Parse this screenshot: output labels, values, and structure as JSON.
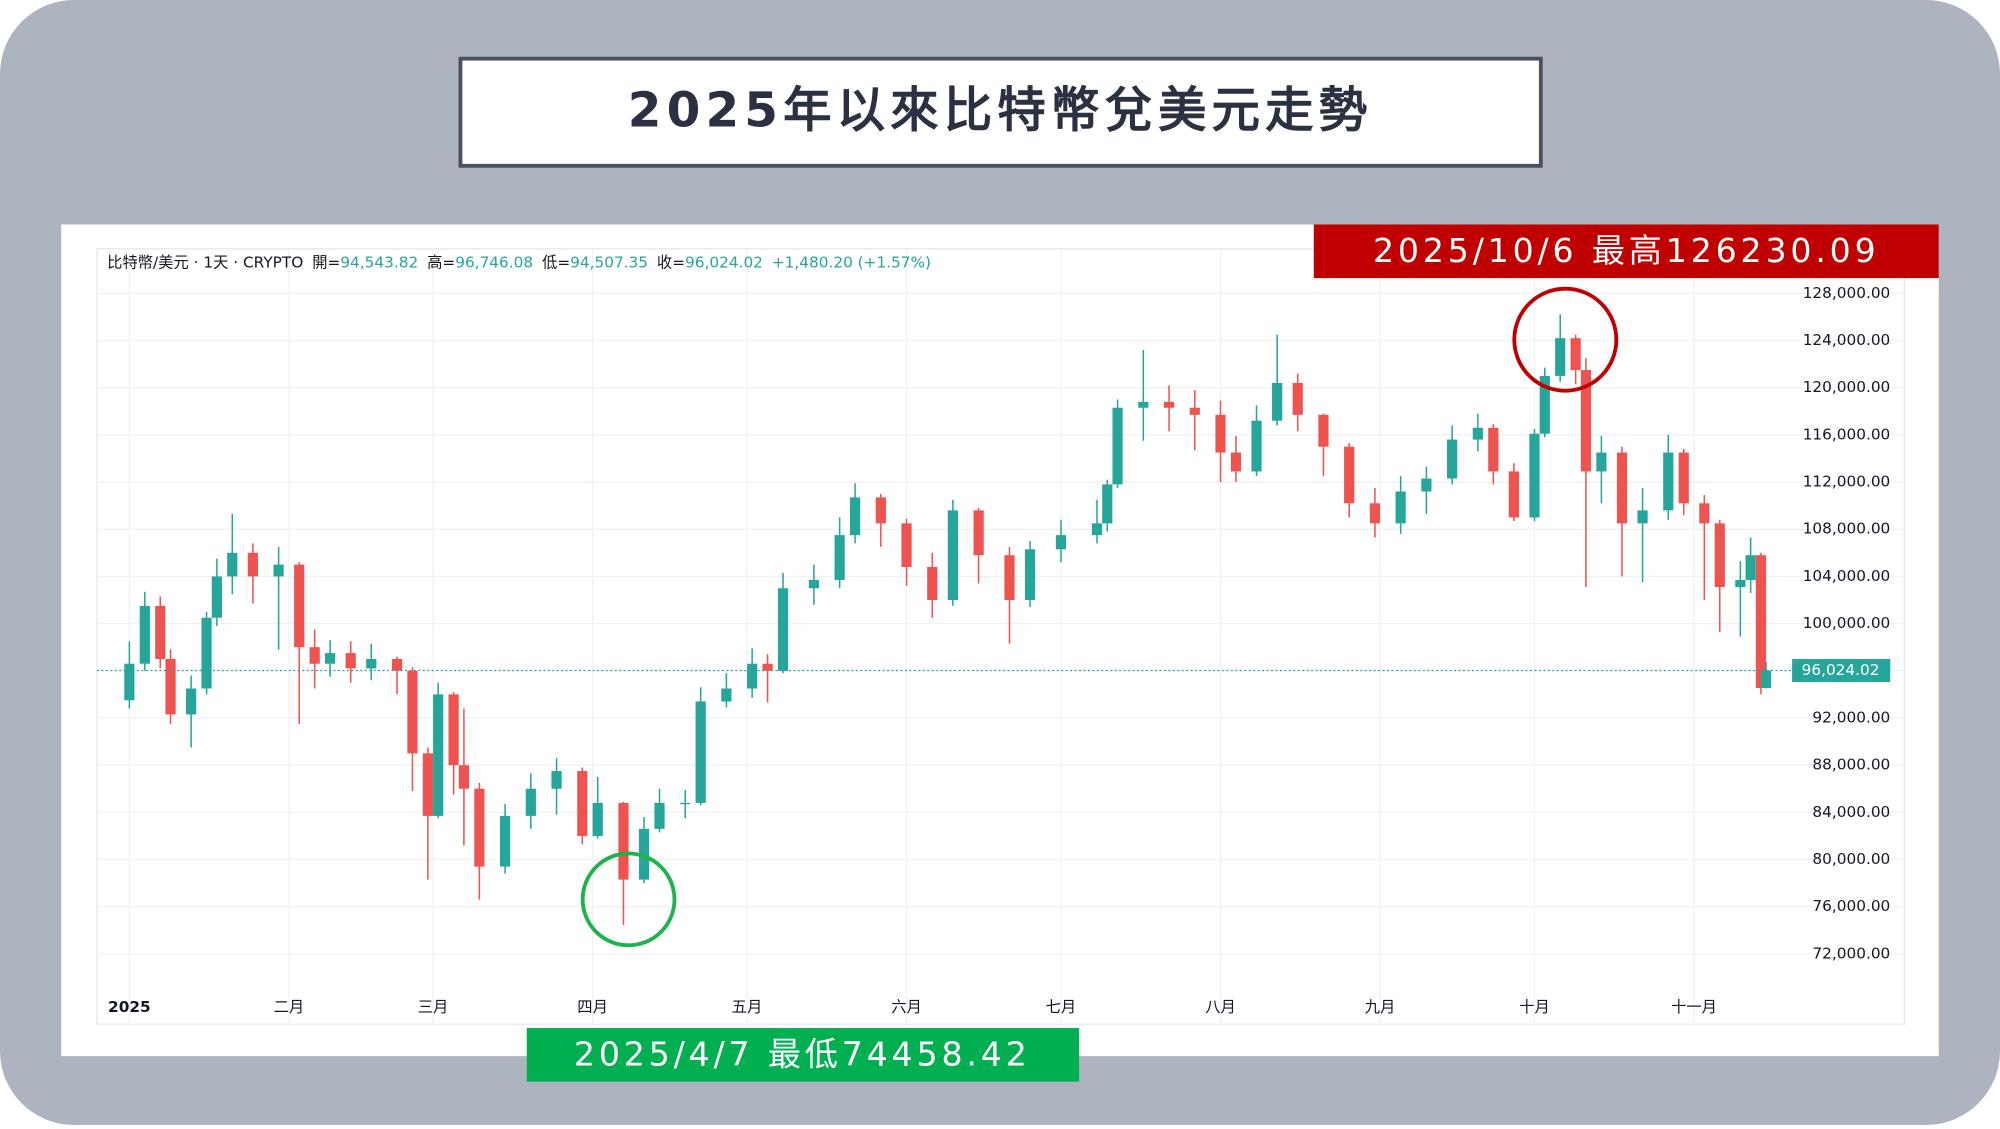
{
  "chart_data": {
    "type": "candlestick",
    "title": "2025年以來比特幣兌美元走勢",
    "header": [
      "比特幣/美元 · 1天 · CRYPTO",
      "開=",
      "94,543.82",
      "高=",
      "96,746.08",
      "低=",
      "94,507.35",
      "收=",
      "96,024.02",
      "+1,480.20 (+1.57%)"
    ],
    "annotations": [
      "2025/10/6 最高126230.09",
      "2025/4/7 最低74458.42"
    ],
    "up_color": "#26a69a",
    "down_color": "#ef5350",
    "x": [
      0,
      3,
      6,
      8,
      12,
      15,
      17,
      20,
      24,
      29,
      33,
      36,
      39,
      43,
      47,
      52,
      55,
      58,
      60,
      63,
      65,
      68,
      73,
      78,
      83,
      88,
      91,
      96,
      100,
      103,
      108,
      111,
      116,
      121,
      124,
      127,
      133,
      138,
      141,
      146,
      151,
      156,
      160,
      165,
      171,
      175,
      181,
      188,
      190,
      192,
      197,
      202,
      207,
      212,
      215,
      219,
      223,
      227,
      232,
      237,
      242,
      247,
      252,
      257,
      262,
      265,
      269,
      273,
      275,
      278,
      281,
      283,
      286,
      290,
      294,
      299,
      302,
      306,
      309,
      313,
      315,
      317,
      318
    ],
    "open": [
      93500,
      96600,
      101500,
      97000,
      92300,
      94500,
      100500,
      104000,
      106000,
      104000,
      105000,
      98000,
      96600,
      97500,
      96200,
      97000,
      96000,
      89000,
      83700,
      94000,
      88000,
      86000,
      79400,
      83700,
      86000,
      87500,
      82000,
      84800,
      78300,
      82600,
      84800,
      84800,
      93400,
      94500,
      96600,
      96000,
      103000,
      103700,
      107500,
      110700,
      108500,
      104800,
      102000,
      109600,
      105800,
      102000,
      106300,
      107500,
      108500,
      111800,
      118300,
      118800,
      118300,
      117700,
      114500,
      112900,
      117200,
      120400,
      117700,
      115000,
      110200,
      108500,
      111200,
      112300,
      115600,
      116600,
      112900,
      109000,
      116100,
      121000,
      124200,
      121500,
      112900,
      114500,
      108500,
      109600,
      114500,
      110200,
      108500,
      103100,
      103700,
      105800,
      94543.82
    ],
    "high": [
      98500,
      102700,
      102300,
      97800,
      95600,
      101000,
      105500,
      109300,
      106800,
      106500,
      105200,
      99500,
      98600,
      98500,
      98300,
      97200,
      96300,
      89500,
      95000,
      94200,
      92800,
      86500,
      84700,
      87300,
      88600,
      87800,
      87000,
      84900,
      83600,
      86000,
      85900,
      94600,
      95800,
      97900,
      97400,
      104300,
      105000,
      109000,
      111900,
      111000,
      108900,
      106000,
      110500,
      109800,
      106500,
      107000,
      108800,
      110500,
      112200,
      119000,
      123200,
      120200,
      119800,
      118900,
      115900,
      118500,
      124500,
      121200,
      117800,
      115300,
      111500,
      112500,
      113300,
      116800,
      117800,
      116900,
      113600,
      116500,
      121700,
      126230.09,
      124500,
      122500,
      115900,
      115000,
      111500,
      116000,
      114800,
      110900,
      108800,
      105300,
      107300,
      106000,
      96746.08
    ],
    "low": [
      92800,
      96000,
      96200,
      91500,
      89500,
      94000,
      99800,
      102500,
      101700,
      97800,
      91500,
      94500,
      95500,
      95000,
      95200,
      94000,
      85800,
      78300,
      83500,
      85500,
      81200,
      76600,
      78800,
      82600,
      83800,
      81300,
      81800,
      74458.42,
      78000,
      82300,
      83500,
      84600,
      92900,
      93700,
      93300,
      95800,
      101600,
      103000,
      106800,
      106500,
      103200,
      100500,
      101500,
      103400,
      98300,
      101400,
      105200,
      106800,
      107800,
      111500,
      115500,
      116300,
      114700,
      112000,
      112000,
      112500,
      116800,
      116300,
      112500,
      109000,
      107300,
      107600,
      109300,
      111800,
      114600,
      111800,
      108700,
      108700,
      115800,
      120500,
      120300,
      103100,
      110200,
      104000,
      103500,
      108800,
      109200,
      102000,
      99300,
      98900,
      102600,
      94000,
      94507.35
    ],
    "close": [
      96600,
      101500,
      97000,
      92300,
      94500,
      100500,
      104000,
      106000,
      104000,
      105000,
      98000,
      96600,
      97500,
      96200,
      97000,
      96000,
      89000,
      83700,
      94000,
      88000,
      86000,
      79400,
      83700,
      86000,
      87500,
      82000,
      84800,
      78300,
      82600,
      84800,
      84800,
      93400,
      94500,
      96600,
      96000,
      103000,
      103700,
      107500,
      110700,
      108500,
      104800,
      102000,
      109600,
      105800,
      102000,
      106300,
      107500,
      108500,
      111800,
      118300,
      118800,
      118300,
      117700,
      114500,
      112900,
      117200,
      120400,
      117700,
      115000,
      110200,
      108500,
      111200,
      112300,
      115600,
      116600,
      112900,
      109000,
      116100,
      121000,
      124200,
      121500,
      112900,
      114500,
      108500,
      109600,
      114500,
      110200,
      108500,
      103100,
      103700,
      105800,
      94543.82,
      96024.02
    ],
    "last_price": {
      "value": 96024.02,
      "label": "96,024.02"
    },
    "xlim": [
      -6.3,
      323.3
    ],
    "xticks": [
      {
        "value": 0,
        "label": "2025"
      },
      {
        "value": 31,
        "label": "二月"
      },
      {
        "value": 59,
        "label": "三月"
      },
      {
        "value": 90,
        "label": "四月"
      },
      {
        "value": 120,
        "label": "五月"
      },
      {
        "value": 151,
        "label": "六月"
      },
      {
        "value": 181,
        "label": "七月"
      },
      {
        "value": 212,
        "label": "八月"
      },
      {
        "value": 243,
        "label": "九月"
      },
      {
        "value": 273,
        "label": "十月"
      },
      {
        "value": 304,
        "label": "十一月"
      }
    ],
    "ylim": [
      69000,
      131500
    ],
    "yticks": [
      {
        "value": 72000,
        "label": "72,000.00"
      },
      {
        "value": 76000,
        "label": "76,000.00"
      },
      {
        "value": 80000,
        "label": "80,000.00"
      },
      {
        "value": 84000,
        "label": "84,000.00"
      },
      {
        "value": 88000,
        "label": "88,000.00"
      },
      {
        "value": 92000,
        "label": "92,000.00"
      },
      {
        "value": 96000,
        "label": "96,000.00"
      },
      {
        "value": 100000,
        "label": "100,000.00"
      },
      {
        "value": 104000,
        "label": "104,000.00"
      },
      {
        "value": 108000,
        "label": "108,000.00"
      },
      {
        "value": 112000,
        "label": "112,000.00"
      },
      {
        "value": 116000,
        "label": "116,000.00"
      },
      {
        "value": 120000,
        "label": "120,000.00"
      },
      {
        "value": 124000,
        "label": "124,000.00"
      },
      {
        "value": 128000,
        "label": "128,000.00"
      }
    ],
    "grid": true
  }
}
